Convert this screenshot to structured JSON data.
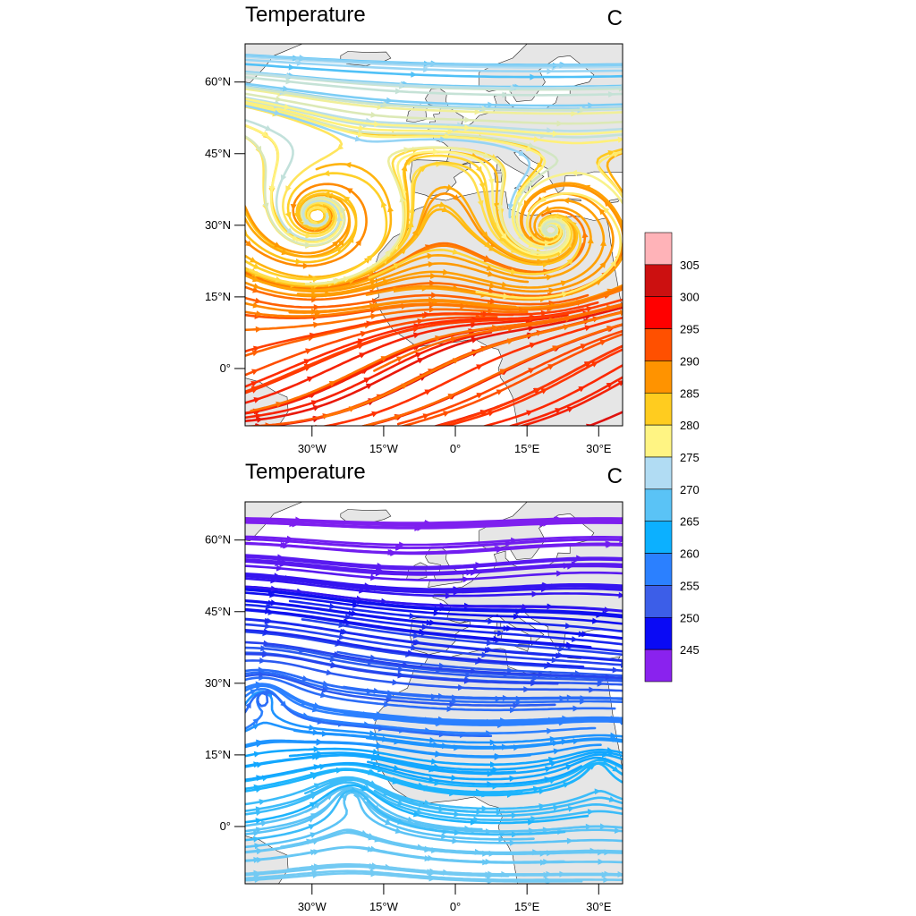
{
  "chart_data": [
    {
      "type": "streamline",
      "title": "Temperature",
      "units": "C",
      "xticks": [
        "30°W",
        "15°W",
        "0°",
        "15°E",
        "30°E"
      ],
      "xtick_values": [
        -30,
        -15,
        0,
        15,
        30
      ],
      "yticks": [
        "60°N",
        "45°N",
        "30°N",
        "15°N",
        "0°"
      ],
      "ytick_values": [
        60,
        45,
        30,
        15,
        0
      ],
      "xlim": [
        -44,
        35
      ],
      "ylim": [
        -12,
        68
      ],
      "gyres": [
        {
          "lon": -29,
          "lat": 32
        },
        {
          "lon": 20,
          "lat": 29
        }
      ],
      "color_range": "yellow-orange-red warm tones, lighter to the north"
    },
    {
      "type": "streamline",
      "title": "Temperature",
      "units": "C",
      "xticks": [
        "30°W",
        "15°W",
        "0°",
        "15°E",
        "30°E"
      ],
      "xtick_values": [
        -30,
        -15,
        0,
        15,
        30
      ],
      "yticks": [
        "60°N",
        "45°N",
        "30°N",
        "15°N",
        "0°"
      ],
      "ytick_values": [
        60,
        45,
        30,
        15,
        0
      ],
      "xlim": [
        -44,
        35
      ],
      "ylim": [
        -12,
        68
      ],
      "flow": "predominantly zonal westerly",
      "color_range": "violet-blue-light blue cool tones"
    }
  ],
  "colorbar": {
    "labels": [
      "305",
      "300",
      "295",
      "290",
      "285",
      "280",
      "275",
      "270",
      "265",
      "260",
      "255",
      "250",
      "245"
    ],
    "colors": [
      "#ffb3b8",
      "#cc1010",
      "#ff0000",
      "#ff5000",
      "#ff9300",
      "#ffcc1f",
      "#fff483",
      "#b1dcf3",
      "#5ac3f6",
      "#0cb0ff",
      "#2b80ff",
      "#3c5ee8",
      "#0a0af5",
      "#8a22ee"
    ]
  },
  "colors": {
    "land": "#e6e6e6",
    "ocean": "#ffffff"
  }
}
